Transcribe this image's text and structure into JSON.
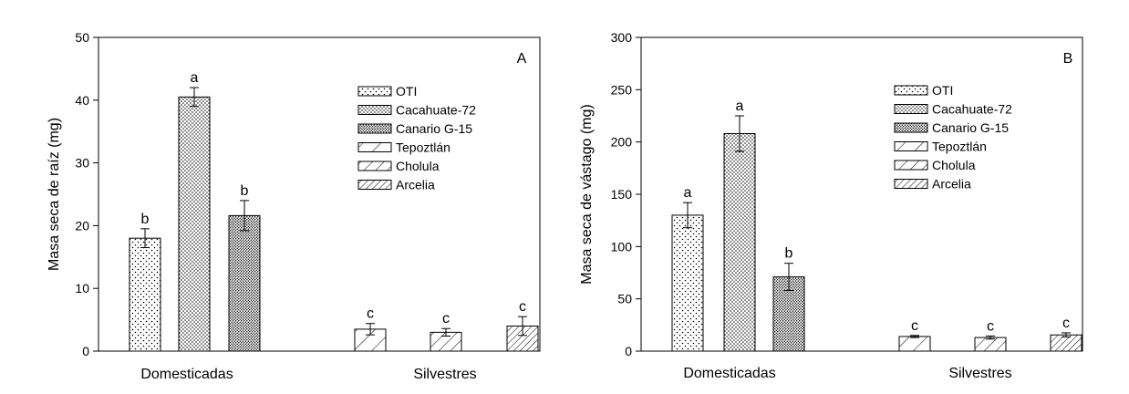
{
  "chart_data": [
    {
      "type": "bar",
      "panel_label": "A",
      "ylabel": "Masa seca de raíz (mg)",
      "ylim": [
        0,
        50
      ],
      "yticks": [
        0,
        10,
        20,
        30,
        40,
        50
      ],
      "groups": [
        "Domesticadas",
        "Silvestres"
      ],
      "legend_position": "top-right",
      "series": [
        {
          "name": "OTI",
          "group": 0,
          "value": 18.0,
          "error": 1.5,
          "letter": "b",
          "pattern": "dots-sparse"
        },
        {
          "name": "Cacahuate-72",
          "group": 0,
          "value": 40.5,
          "error": 1.5,
          "letter": "a",
          "pattern": "dots-medium"
        },
        {
          "name": "Canario G-15",
          "group": 0,
          "value": 21.6,
          "error": 2.4,
          "letter": "b",
          "pattern": "dots-dense"
        },
        {
          "name": "Tepoztlán",
          "group": 1,
          "value": 3.5,
          "error": 0.9,
          "letter": "c",
          "pattern": "hatch-sparse"
        },
        {
          "name": "Cholula",
          "group": 1,
          "value": 3.0,
          "error": 0.6,
          "letter": "c",
          "pattern": "hatch-medium"
        },
        {
          "name": "Arcelia",
          "group": 1,
          "value": 4.0,
          "error": 1.5,
          "letter": "c",
          "pattern": "hatch-dense"
        }
      ]
    },
    {
      "type": "bar",
      "panel_label": "B",
      "ylabel": "Masa seca de vástago (mg)",
      "ylim": [
        0,
        300
      ],
      "yticks": [
        0,
        50,
        100,
        150,
        200,
        250,
        300
      ],
      "groups": [
        "Domesticadas",
        "Silvestres"
      ],
      "legend_position": "top-right",
      "series": [
        {
          "name": "OTI",
          "group": 0,
          "value": 130,
          "error": 12,
          "letter": "a",
          "pattern": "dots-sparse"
        },
        {
          "name": "Cacahuate-72",
          "group": 0,
          "value": 208,
          "error": 17,
          "letter": "a",
          "pattern": "dots-medium"
        },
        {
          "name": "Canario G-15",
          "group": 0,
          "value": 71,
          "error": 13,
          "letter": "b",
          "pattern": "dots-dense"
        },
        {
          "name": "Tepoztlán",
          "group": 1,
          "value": 14,
          "error": 1,
          "letter": "c",
          "pattern": "hatch-sparse"
        },
        {
          "name": "Cholula",
          "group": 1,
          "value": 13,
          "error": 1.5,
          "letter": "c",
          "pattern": "hatch-medium"
        },
        {
          "name": "Arcelia",
          "group": 1,
          "value": 15.5,
          "error": 2,
          "letter": "c",
          "pattern": "hatch-dense"
        }
      ]
    }
  ]
}
